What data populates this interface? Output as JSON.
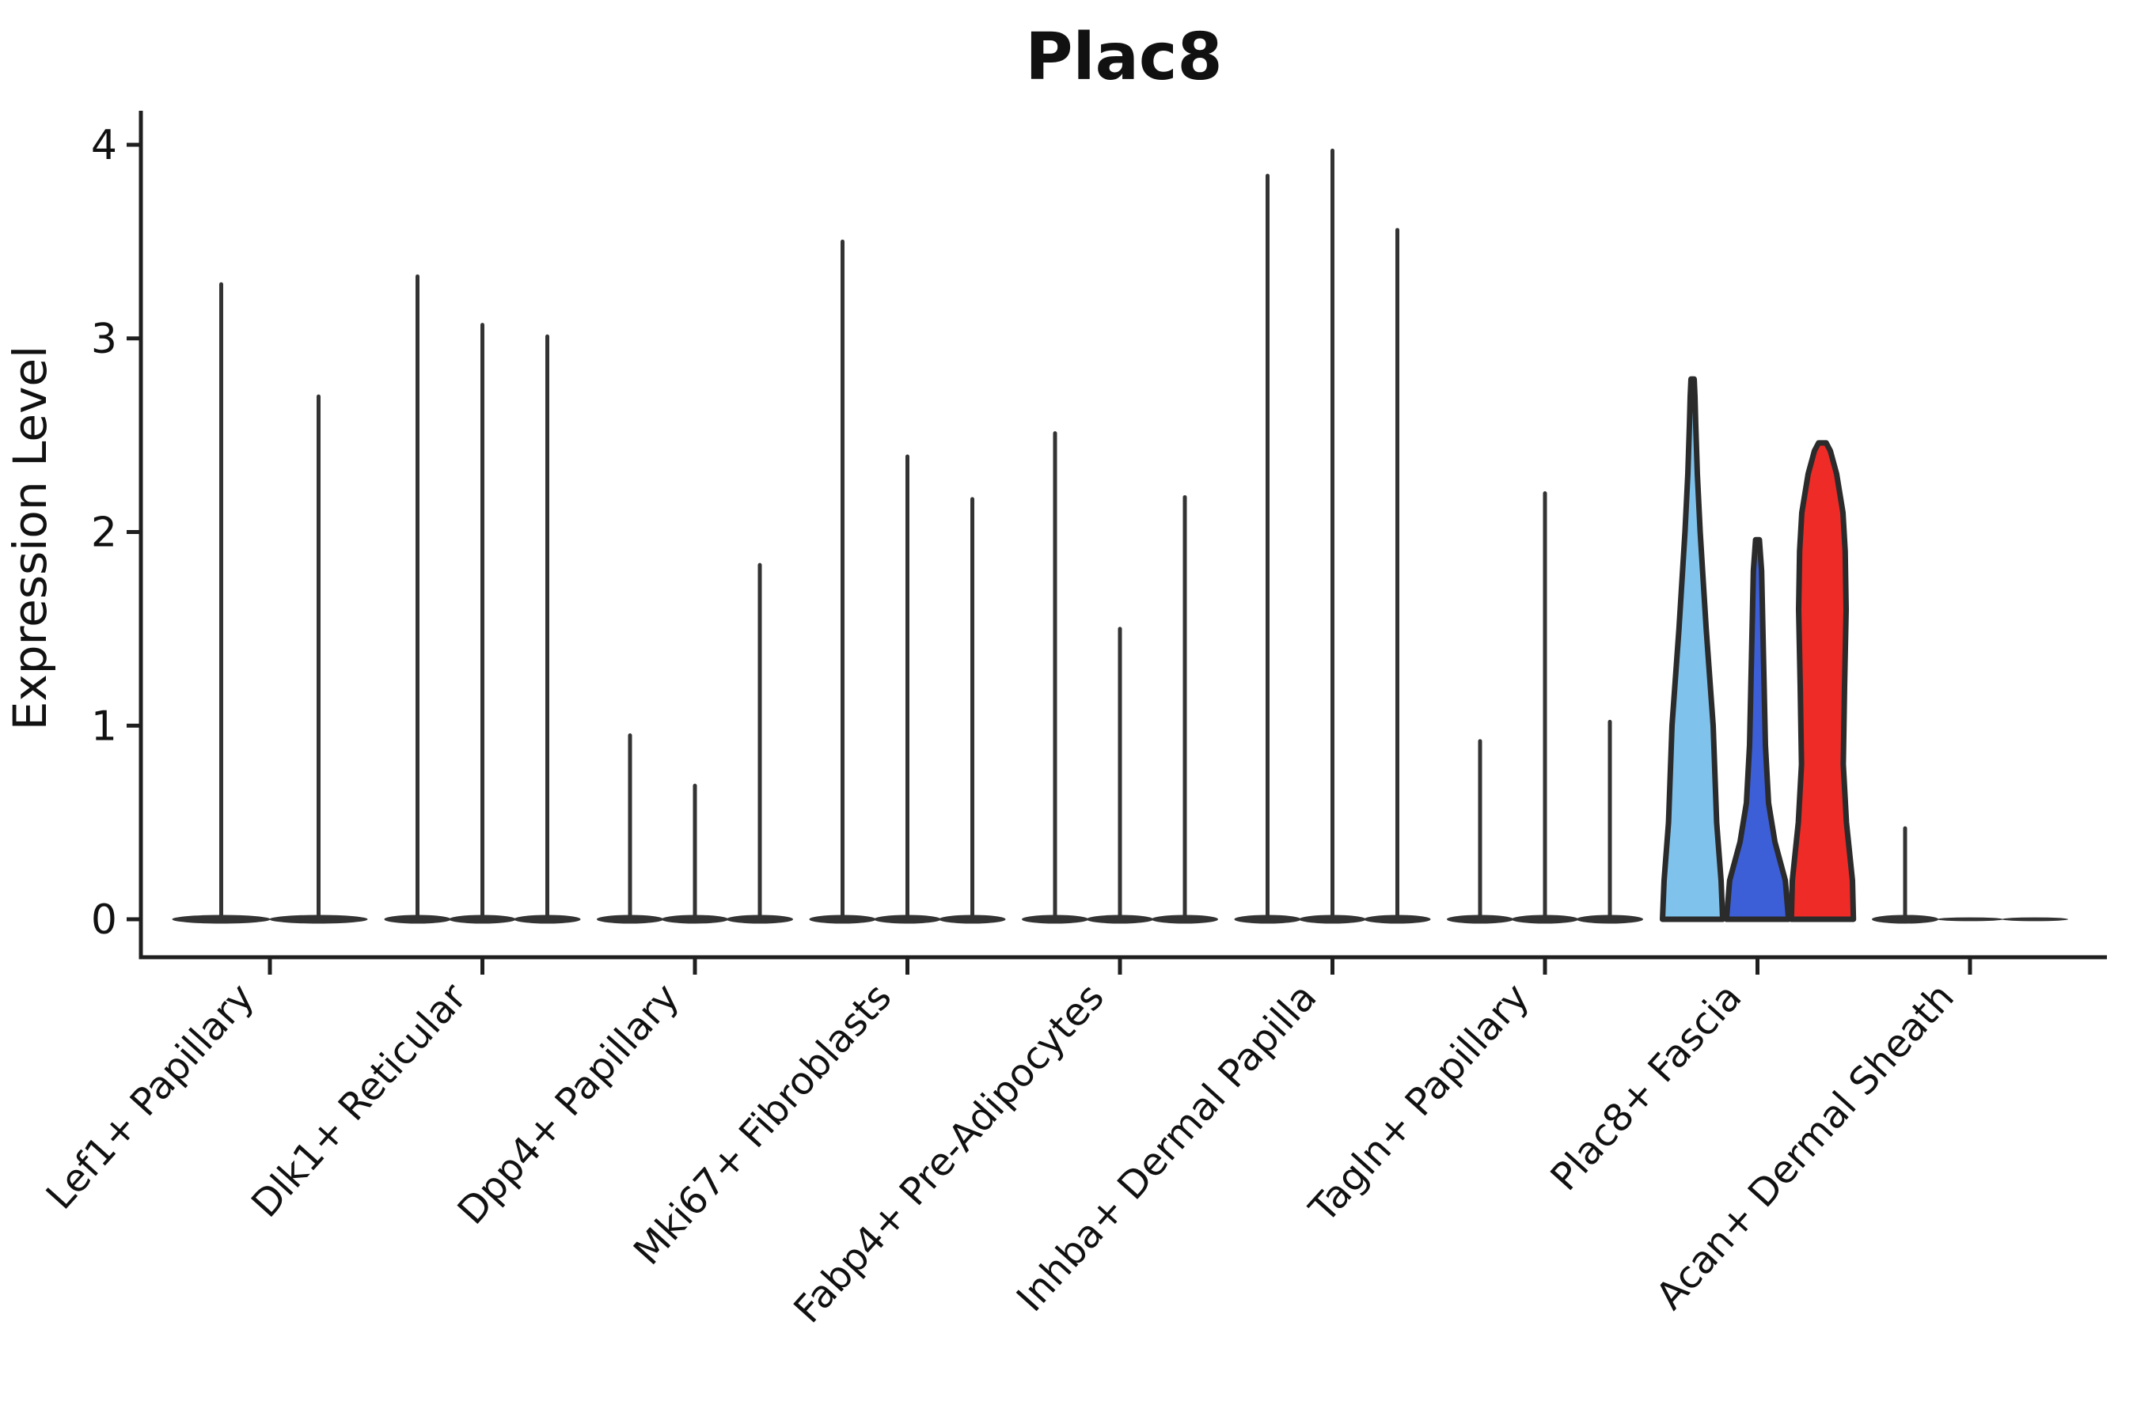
{
  "chart_data": {
    "type": "violin",
    "title": "Plac8",
    "ylabel": "Expression Level",
    "xlabel": "",
    "ylim": [
      0,
      4.15
    ],
    "yticks": [
      "0",
      "1",
      "2",
      "3",
      "4"
    ],
    "ytick_values": [
      0,
      1,
      2,
      3,
      4
    ],
    "grid": "off",
    "legend": "none",
    "categories": [
      "Lef1+ Papillary",
      "Dlk1+ Reticular",
      "Dpp4+ Papillary",
      "Mki67+ Fibroblasts",
      "Fabp4+ Pre-Adipocytes",
      "Inhba+ Dermal Papilla",
      "Tagln+ Papillary",
      "Plac8+ Fascia",
      "Acan+ Dermal Sheath"
    ],
    "groups": [
      {
        "label": "Lef1+ Papillary",
        "violins": [
          {
            "max": 3.28,
            "style": "spike",
            "color": "#333333"
          },
          {
            "max": 2.7,
            "style": "spike",
            "color": "#333333"
          }
        ]
      },
      {
        "label": "Dlk1+ Reticular",
        "violins": [
          {
            "max": 3.32,
            "style": "spike",
            "color": "#333333"
          },
          {
            "max": 3.07,
            "style": "spike",
            "color": "#333333"
          },
          {
            "max": 3.01,
            "style": "spike",
            "color": "#333333"
          }
        ]
      },
      {
        "label": "Dpp4+ Papillary",
        "violins": [
          {
            "max": 0.95,
            "style": "spike",
            "color": "#333333"
          },
          {
            "max": 0.69,
            "style": "spike",
            "color": "#333333"
          },
          {
            "max": 1.83,
            "style": "spike",
            "color": "#333333"
          }
        ]
      },
      {
        "label": "Mki67+ Fibroblasts",
        "violins": [
          {
            "max": 3.5,
            "style": "spike",
            "color": "#333333"
          },
          {
            "max": 2.39,
            "style": "spike",
            "color": "#333333"
          },
          {
            "max": 2.17,
            "style": "spike",
            "color": "#333333"
          }
        ]
      },
      {
        "label": "Fabp4+ Pre-Adipocytes",
        "violins": [
          {
            "max": 2.51,
            "style": "spike",
            "color": "#333333"
          },
          {
            "max": 1.5,
            "style": "spike",
            "color": "#333333"
          },
          {
            "max": 2.18,
            "style": "spike",
            "color": "#333333"
          }
        ]
      },
      {
        "label": "Inhba+ Dermal Papilla",
        "violins": [
          {
            "max": 3.84,
            "style": "spike",
            "color": "#333333"
          },
          {
            "max": 3.97,
            "style": "spike",
            "color": "#333333"
          },
          {
            "max": 3.56,
            "style": "spike",
            "color": "#333333"
          }
        ]
      },
      {
        "label": "Tagln+ Papillary",
        "violins": [
          {
            "max": 0.92,
            "style": "spike",
            "color": "#333333"
          },
          {
            "max": 2.2,
            "style": "spike",
            "color": "#333333"
          },
          {
            "max": 1.02,
            "style": "spike",
            "color": "#333333"
          }
        ]
      },
      {
        "label": "Plac8+ Fascia",
        "violins": [
          {
            "max": 2.79,
            "style": "filled",
            "color": "#7FC3EC",
            "profile": [
              [
                0,
                0.95
              ],
              [
                0.2,
                0.9
              ],
              [
                0.5,
                0.76
              ],
              [
                1.0,
                0.65
              ],
              [
                1.5,
                0.43
              ],
              [
                2.0,
                0.24
              ],
              [
                2.3,
                0.15
              ],
              [
                2.55,
                0.1
              ],
              [
                2.7,
                0.075
              ],
              [
                2.79,
                0.05
              ]
            ]
          },
          {
            "max": 1.96,
            "style": "filled",
            "color": "#3C5FD7",
            "profile": [
              [
                0,
                0.98
              ],
              [
                0.2,
                0.88
              ],
              [
                0.4,
                0.55
              ],
              [
                0.6,
                0.35
              ],
              [
                0.9,
                0.25
              ],
              [
                1.2,
                0.21
              ],
              [
                1.5,
                0.17
              ],
              [
                1.8,
                0.13
              ],
              [
                1.96,
                0.06
              ]
            ]
          },
          {
            "max": 2.46,
            "style": "filled",
            "color": "#EE2B26",
            "profile": [
              [
                0,
                0.98
              ],
              [
                0.2,
                0.95
              ],
              [
                0.5,
                0.76
              ],
              [
                0.8,
                0.66
              ],
              [
                1.2,
                0.7
              ],
              [
                1.6,
                0.75
              ],
              [
                1.9,
                0.72
              ],
              [
                2.1,
                0.65
              ],
              [
                2.3,
                0.45
              ],
              [
                2.42,
                0.25
              ],
              [
                2.46,
                0.12
              ]
            ]
          }
        ]
      },
      {
        "label": "Acan+ Dermal Sheath",
        "violins": [
          {
            "max": 0.47,
            "style": "spike",
            "color": "#333333"
          },
          {
            "max": 0,
            "style": "flat",
            "color": "#333333"
          },
          {
            "max": 0,
            "style": "flat",
            "color": "#333333"
          }
        ]
      }
    ],
    "colors": {
      "spike": "#333333",
      "outline": "#2B2B2B",
      "spine": "#1f1f1f",
      "text": "#111111",
      "highlight_skyblue": "#7FC3EC",
      "highlight_royalblue": "#3C5FD7",
      "highlight_red": "#EE2B26",
      "background": "#ffffff"
    }
  }
}
